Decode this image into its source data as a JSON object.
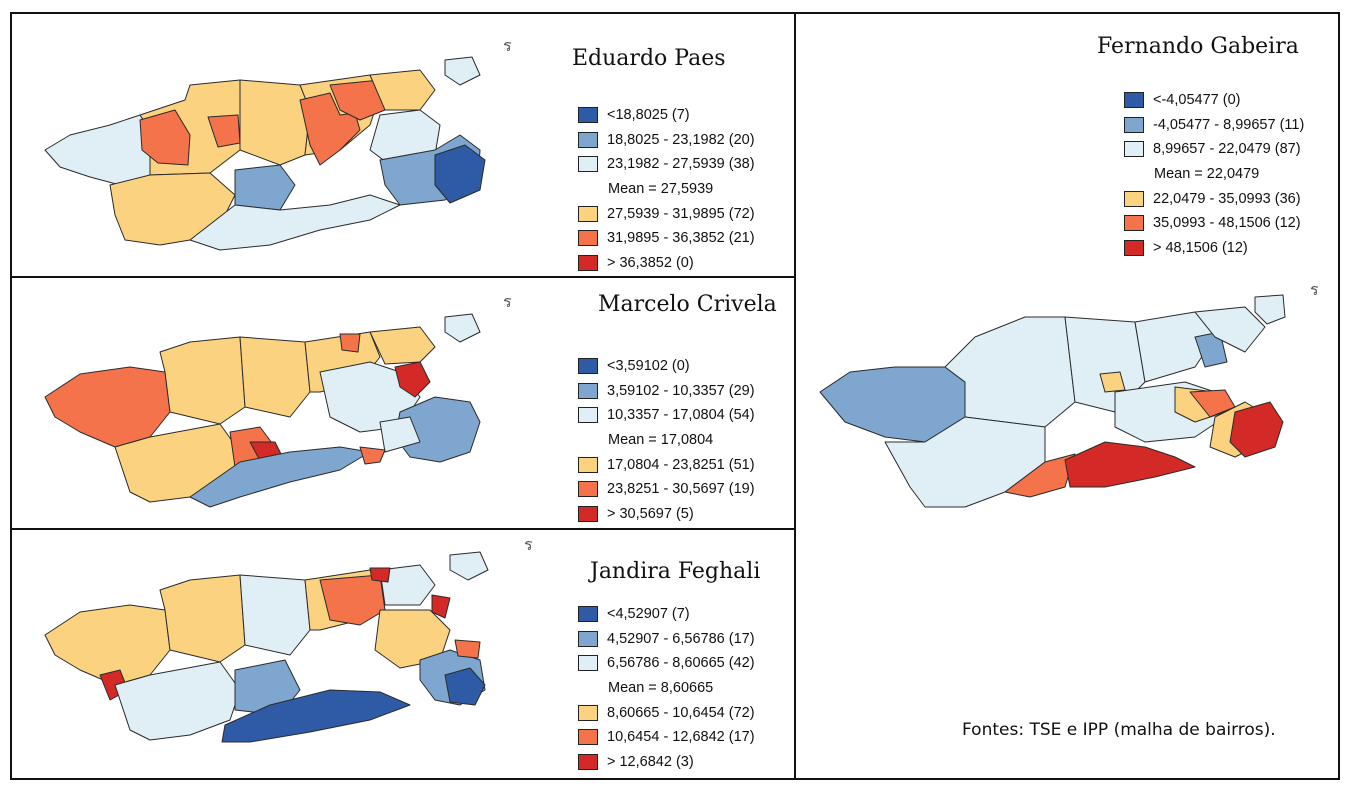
{
  "panels": {
    "paes": {
      "title": "Eduardo Paes",
      "legend": [
        "<18,8025 (7)",
        "18,8025 - 23,1982 (20)",
        "23,1982 - 27,5939 (38)",
        "27,5939 - 31,9895 (72)",
        "31,9895 - 36,3852 (21)",
        "> 36,3852 (0)"
      ],
      "mean": "Mean = 27,5939"
    },
    "crivela": {
      "title": "Marcelo Crivela",
      "legend": [
        "<3,59102 (0)",
        "3,59102 - 10,3357 (29)",
        "10,3357 - 17,0804 (54)",
        "17,0804 - 23,8251 (51)",
        "23,8251 - 30,5697 (19)",
        "> 30,5697 (5)"
      ],
      "mean": "Mean = 17,0804"
    },
    "feghali": {
      "title": "Jandira Feghali",
      "legend": [
        "<4,52907 (7)",
        "4,52907 - 6,56786 (17)",
        "6,56786 - 8,60665 (42)",
        "8,60665 - 10,6454 (72)",
        "10,6454 - 12,6842 (17)",
        "> 12,6842 (3)"
      ],
      "mean": "Mean = 8,60665"
    },
    "gabeira": {
      "title": "Fernando Gabeira",
      "legend": [
        "<-4,05477 (0)",
        "-4,05477 - 8,99657 (11)",
        "8,99657 - 22,0479 (87)",
        "22,0479 - 35,0993 (36)",
        "35,0993 - 48,1506 (12)",
        "> 48,1506 (12)"
      ],
      "mean": "Mean = 22,0479"
    }
  },
  "colors": {
    "class1": "#2f5ba6",
    "class2": "#7ea6cf",
    "class3": "#dfeff5",
    "class4": "#fbd27f",
    "class5": "#f4734a",
    "class6": "#d42a27"
  },
  "source": "Fontes: TSE e IPP (malha de bairros)."
}
